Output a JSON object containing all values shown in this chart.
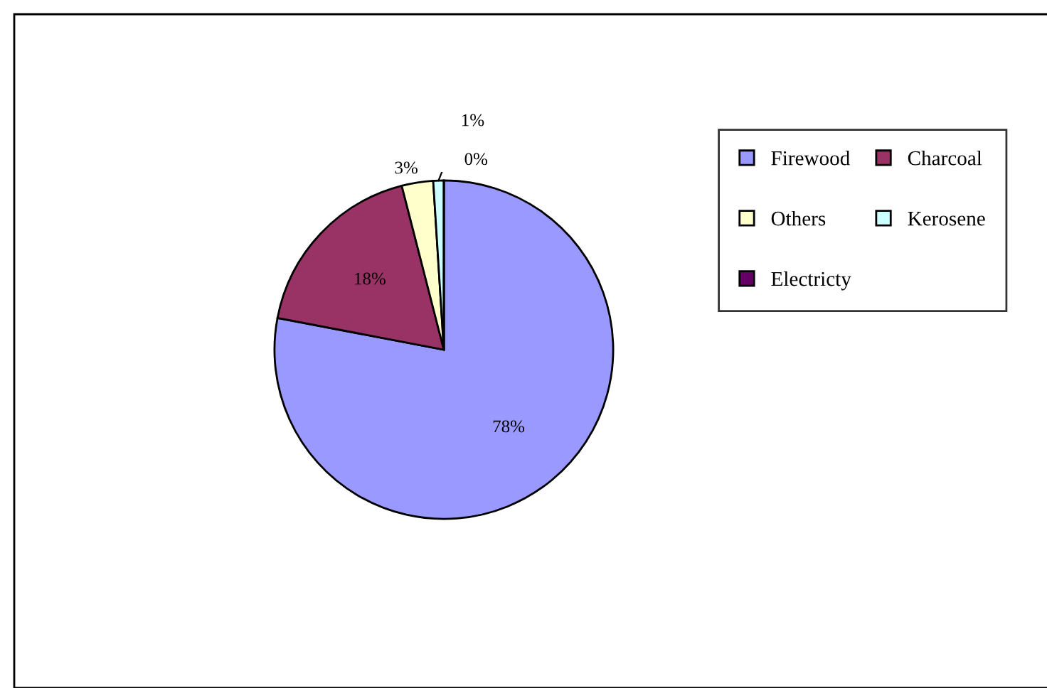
{
  "chart_data": {
    "type": "pie",
    "categories": [
      "Firewood",
      "Charcoal",
      "Others",
      "Kerosene",
      "Electricty"
    ],
    "values": [
      78,
      18,
      3,
      1,
      0
    ],
    "colors": [
      "#9999ff",
      "#993366",
      "#ffffcc",
      "#ccffff",
      "#660066"
    ],
    "value_labels": [
      "78%",
      "18%",
      "3%",
      "1%",
      "0%"
    ],
    "legend": "right"
  }
}
